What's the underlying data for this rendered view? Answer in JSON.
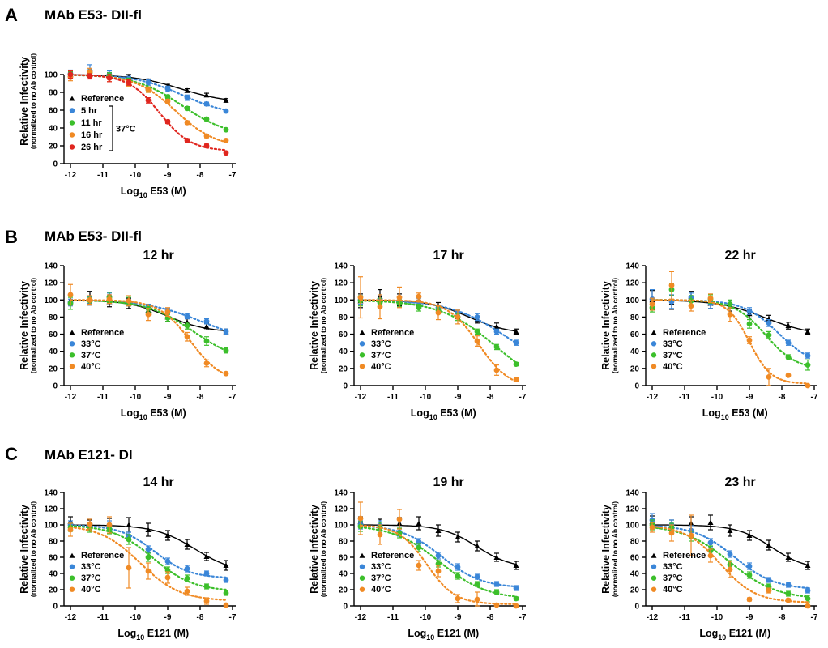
{
  "panels": [
    {
      "letter": "A",
      "title": "MAb E53- DII-fl"
    },
    {
      "letter": "B",
      "title": "MAb E53- DII-fl"
    },
    {
      "letter": "C",
      "title": "MAb E121- DI"
    }
  ],
  "colors": {
    "reference": "#000000",
    "c1": "#3a86d8",
    "c2": "#3cbf2b",
    "c3": "#f08a24",
    "c4": "#e0261f"
  },
  "chart_data": [
    {
      "type": "line",
      "panel": "A",
      "title": "",
      "xlabel_prefix": "Log",
      "xlabel_sub": "10",
      "xlabel_suffix": " E53 (M)",
      "ylabel": "Relative  Infectivity",
      "ylabel_sub": "(normalized to no Ab control)",
      "xlim": [
        -12.2,
        -6.9
      ],
      "ylim": [
        0,
        140
      ],
      "xticks": [
        -12,
        -11,
        -10,
        -9,
        -8,
        -7
      ],
      "yticks": [
        0,
        20,
        40,
        60,
        80,
        100
      ],
      "legend_note": "37°C",
      "x": [
        -12,
        -11.4,
        -10.8,
        -10.2,
        -9.6,
        -9,
        -8.4,
        -7.8,
        -7.2
      ],
      "series": [
        {
          "name": "Reference",
          "color": "#000000",
          "marker": "triangle",
          "line": "solid",
          "values": [
            100,
            101,
            100,
            98,
            93,
            87,
            82,
            77,
            71
          ],
          "err": [
            3,
            3,
            2,
            2,
            2,
            2,
            2,
            2,
            2
          ]
        },
        {
          "name": "5 hr",
          "color": "#3a86d8",
          "marker": "circle",
          "line": "dotted",
          "values": [
            101,
            104,
            100,
            95,
            91,
            84,
            74,
            67,
            59
          ],
          "err": [
            4,
            7,
            4,
            3,
            3,
            3,
            3,
            2,
            2
          ]
        },
        {
          "name": "11 hr",
          "color": "#3cbf2b",
          "marker": "circle",
          "line": "dotted",
          "values": [
            100,
            102,
            99,
            93,
            83,
            75,
            62,
            50,
            38
          ],
          "err": [
            3,
            3,
            3,
            3,
            3,
            2,
            2,
            2,
            2
          ]
        },
        {
          "name": "16 hr",
          "color": "#f08a24",
          "marker": "circle",
          "line": "dotted",
          "values": [
            97,
            103,
            96,
            90,
            83,
            70,
            46,
            31,
            26
          ],
          "err": [
            4,
            4,
            4,
            3,
            3,
            2,
            2,
            2,
            2
          ]
        },
        {
          "name": "26 hr",
          "color": "#e0261f",
          "marker": "circle",
          "line": "dotted",
          "values": [
            100,
            98,
            96,
            91,
            71,
            47,
            26,
            20,
            12
          ],
          "err": [
            4,
            3,
            4,
            3,
            3,
            2,
            2,
            2,
            1
          ]
        }
      ]
    },
    {
      "type": "line",
      "panel": "B",
      "title": "12 hr",
      "xlabel_prefix": "Log",
      "xlabel_sub": "10",
      "xlabel_suffix": " E53 (M)",
      "ylabel": "Relative  Infectivity",
      "ylabel_sub": "(normalized to no Ab control)",
      "xlim": [
        -12.2,
        -6.9
      ],
      "ylim": [
        0,
        140
      ],
      "xticks": [
        -12,
        -11,
        -10,
        -9,
        -8,
        -7
      ],
      "yticks": [
        0,
        20,
        40,
        60,
        80,
        100,
        120,
        140
      ],
      "x": [
        -12,
        -11.4,
        -10.8,
        -10.2,
        -9.6,
        -9,
        -8.4,
        -7.8,
        -7.2
      ],
      "series": [
        {
          "name": "Reference",
          "color": "#000000",
          "marker": "triangle",
          "line": "solid",
          "values": [
            100,
            102,
            98,
            96,
            88,
            80,
            74,
            69,
            63
          ],
          "err": [
            5,
            8,
            6,
            6,
            5,
            5,
            4,
            4,
            3
          ]
        },
        {
          "name": "33°C",
          "color": "#3a86d8",
          "marker": "circle",
          "line": "dotted",
          "values": [
            97,
            100,
            104,
            97,
            92,
            87,
            81,
            75,
            63
          ],
          "err": [
            4,
            4,
            4,
            4,
            3,
            3,
            3,
            3,
            3
          ]
        },
        {
          "name": "37°C",
          "color": "#3cbf2b",
          "marker": "circle",
          "line": "dotted",
          "values": [
            96,
            99,
            103,
            98,
            90,
            79,
            70,
            52,
            41
          ],
          "err": [
            7,
            4,
            6,
            5,
            4,
            4,
            4,
            5,
            3
          ]
        },
        {
          "name": "40°C",
          "color": "#f08a24",
          "marker": "circle",
          "line": "dotted",
          "values": [
            106,
            100,
            101,
            99,
            83,
            86,
            57,
            26,
            14
          ],
          "err": [
            12,
            5,
            5,
            6,
            7,
            5,
            5,
            4,
            2
          ]
        }
      ]
    },
    {
      "type": "line",
      "panel": "B",
      "title": "17 hr",
      "xlabel_prefix": "Log",
      "xlabel_sub": "10",
      "xlabel_suffix": " E53 (M)",
      "ylabel": "Relative  Infectivity",
      "ylabel_sub": "(normalized to no Ab control)",
      "xlim": [
        -12.2,
        -6.9
      ],
      "ylim": [
        0,
        140
      ],
      "xticks": [
        -12,
        -11,
        -10,
        -9,
        -8,
        -7
      ],
      "yticks": [
        0,
        20,
        40,
        60,
        80,
        100,
        120,
        140
      ],
      "x": [
        -12,
        -11.4,
        -10.8,
        -10.2,
        -9.6,
        -9,
        -8.4,
        -7.8,
        -7.2
      ],
      "series": [
        {
          "name": "Reference",
          "color": "#000000",
          "marker": "triangle",
          "line": "solid",
          "values": [
            99,
            104,
            100,
            99,
            92,
            83,
            77,
            69,
            63
          ],
          "err": [
            8,
            8,
            7,
            6,
            5,
            5,
            4,
            4,
            3
          ]
        },
        {
          "name": "33°C",
          "color": "#3a86d8",
          "marker": "circle",
          "line": "dotted",
          "values": [
            100,
            100,
            99,
            98,
            91,
            85,
            80,
            63,
            50
          ],
          "err": [
            5,
            5,
            4,
            4,
            3,
            3,
            4,
            3,
            3
          ]
        },
        {
          "name": "37°C",
          "color": "#3cbf2b",
          "marker": "circle",
          "line": "dotted",
          "values": [
            99,
            97,
            96,
            91,
            88,
            80,
            63,
            45,
            25
          ],
          "err": [
            6,
            5,
            4,
            4,
            4,
            4,
            3,
            3,
            2
          ]
        },
        {
          "name": "40°C",
          "color": "#f08a24",
          "marker": "circle",
          "line": "dotted",
          "values": [
            103,
            92,
            103,
            104,
            85,
            80,
            52,
            18,
            7
          ],
          "err": [
            24,
            14,
            12,
            4,
            8,
            8,
            6,
            6,
            2
          ]
        }
      ]
    },
    {
      "type": "line",
      "panel": "B",
      "title": "22 hr",
      "xlabel_prefix": "Log",
      "xlabel_sub": "10",
      "xlabel_suffix": " E53 (M)",
      "ylabel": "Relative  Infectivity",
      "ylabel_sub": "(normalized to no Ab control)",
      "xlim": [
        -12.2,
        -6.9
      ],
      "ylim": [
        0,
        140
      ],
      "xticks": [
        -12,
        -11,
        -10,
        -9,
        -8,
        -7
      ],
      "yticks": [
        0,
        20,
        40,
        60,
        80,
        100,
        120,
        140
      ],
      "x": [
        -12,
        -11.4,
        -10.8,
        -10.2,
        -9.6,
        -9,
        -8.4,
        -7.8,
        -7.2
      ],
      "series": [
        {
          "name": "Reference",
          "color": "#000000",
          "marker": "triangle",
          "line": "solid",
          "values": [
            100,
            97,
            104,
            96,
            93,
            84,
            78,
            70,
            63
          ],
          "err": [
            11,
            8,
            6,
            6,
            6,
            5,
            4,
            4,
            3
          ]
        },
        {
          "name": "33°C",
          "color": "#3a86d8",
          "marker": "circle",
          "line": "dotted",
          "values": [
            101,
            98,
            103,
            96,
            95,
            87,
            73,
            50,
            35
          ],
          "err": [
            11,
            8,
            5,
            6,
            4,
            4,
            4,
            3,
            3
          ]
        },
        {
          "name": "37°C",
          "color": "#3cbf2b",
          "marker": "circle",
          "line": "dotted",
          "values": [
            91,
            112,
            99,
            101,
            95,
            72,
            59,
            33,
            24
          ],
          "err": [
            5,
            7,
            6,
            5,
            5,
            5,
            4,
            3,
            6
          ]
        },
        {
          "name": "40°C",
          "color": "#f08a24",
          "marker": "circle",
          "line": "dotted",
          "values": [
            95,
            117,
            93,
            102,
            83,
            53,
            10,
            12,
            0
          ],
          "err": [
            7,
            16,
            6,
            5,
            8,
            4,
            10,
            1,
            0
          ]
        }
      ]
    },
    {
      "type": "line",
      "panel": "C",
      "title": "14 hr",
      "xlabel_prefix": "Log",
      "xlabel_sub": "10",
      "xlabel_suffix": " E121 (M)",
      "ylabel": "Relative  Infectivity",
      "ylabel_sub": "(normalized to no Ab control)",
      "xlim": [
        -12.2,
        -6.9
      ],
      "ylim": [
        0,
        140
      ],
      "xticks": [
        -12,
        -11,
        -10,
        -9,
        -8,
        -7
      ],
      "yticks": [
        0,
        20,
        40,
        60,
        80,
        100,
        120,
        140
      ],
      "x": [
        -12,
        -11.4,
        -10.8,
        -10.2,
        -9.6,
        -9,
        -8.4,
        -7.8,
        -7.2
      ],
      "series": [
        {
          "name": "Reference",
          "color": "#000000",
          "marker": "triangle",
          "line": "solid",
          "values": [
            104,
            100,
            100,
            100,
            94,
            87,
            76,
            61,
            50
          ],
          "err": [
            6,
            6,
            8,
            9,
            8,
            6,
            6,
            5,
            6
          ]
        },
        {
          "name": "33°C",
          "color": "#3a86d8",
          "marker": "circle",
          "line": "dotted",
          "values": [
            100,
            101,
            100,
            86,
            70,
            55,
            46,
            40,
            32
          ],
          "err": [
            5,
            6,
            5,
            5,
            4,
            4,
            4,
            3,
            3
          ]
        },
        {
          "name": "37°C",
          "color": "#3cbf2b",
          "marker": "circle",
          "line": "dotted",
          "values": [
            97,
            96,
            95,
            82,
            60,
            44,
            34,
            24,
            16
          ],
          "err": [
            5,
            5,
            6,
            6,
            5,
            4,
            4,
            3,
            3
          ]
        },
        {
          "name": "40°C",
          "color": "#f08a24",
          "marker": "circle",
          "line": "dotted",
          "values": [
            94,
            101,
            100,
            47,
            43,
            35,
            18,
            6,
            1
          ],
          "err": [
            8,
            6,
            10,
            25,
            10,
            7,
            5,
            4,
            1
          ]
        }
      ]
    },
    {
      "type": "line",
      "panel": "C",
      "title": "19 hr",
      "xlabel_prefix": "Log",
      "xlabel_sub": "10",
      "xlabel_suffix": " E121 (M)",
      "ylabel": "Relative  Infectivity",
      "ylabel_sub": "(normalized to no Ab control)",
      "xlim": [
        -12.2,
        -6.9
      ],
      "ylim": [
        0,
        140
      ],
      "xticks": [
        -12,
        -11,
        -10,
        -9,
        -8,
        -7
      ],
      "yticks": [
        0,
        20,
        40,
        60,
        80,
        100,
        120,
        140
      ],
      "x": [
        -12,
        -11.4,
        -10.8,
        -10.2,
        -9.6,
        -9,
        -8.4,
        -7.8,
        -7.2
      ],
      "series": [
        {
          "name": "Reference",
          "color": "#000000",
          "marker": "triangle",
          "line": "solid",
          "values": [
            104,
            100,
            102,
            102,
            93,
            85,
            74,
            60,
            50
          ],
          "err": [
            6,
            7,
            7,
            8,
            7,
            6,
            6,
            5,
            5
          ]
        },
        {
          "name": "33°C",
          "color": "#3a86d8",
          "marker": "circle",
          "line": "dotted",
          "values": [
            100,
            99,
            91,
            79,
            62,
            48,
            36,
            27,
            22
          ],
          "err": [
            5,
            6,
            5,
            4,
            4,
            4,
            3,
            3,
            3
          ]
        },
        {
          "name": "37°C",
          "color": "#3cbf2b",
          "marker": "circle",
          "line": "dotted",
          "values": [
            98,
            97,
            90,
            72,
            52,
            37,
            27,
            17,
            9
          ],
          "err": [
            6,
            6,
            6,
            5,
            4,
            4,
            3,
            3,
            2
          ]
        },
        {
          "name": "40°C",
          "color": "#f08a24",
          "marker": "circle",
          "line": "dotted",
          "values": [
            108,
            88,
            107,
            50,
            43,
            9,
            8,
            1,
            0
          ],
          "err": [
            20,
            12,
            12,
            6,
            7,
            5,
            9,
            1,
            0
          ]
        }
      ]
    },
    {
      "type": "line",
      "panel": "C",
      "title": "23 hr",
      "xlabel_prefix": "Log",
      "xlabel_sub": "10",
      "xlabel_suffix": " E121 (M)",
      "ylabel": "Relative  Infectivity",
      "ylabel_sub": "(normalized to no Ab control)",
      "xlim": [
        -12.2,
        -6.9
      ],
      "ylim": [
        0,
        140
      ],
      "xticks": [
        -12,
        -11,
        -10,
        -9,
        -8,
        -7
      ],
      "yticks": [
        0,
        20,
        40,
        60,
        80,
        100,
        120,
        140
      ],
      "x": [
        -12,
        -11.4,
        -10.8,
        -10.2,
        -9.6,
        -9,
        -8.4,
        -7.8,
        -7.2
      ],
      "series": [
        {
          "name": "Reference",
          "color": "#000000",
          "marker": "triangle",
          "line": "solid",
          "values": [
            104,
            100,
            102,
            103,
            93,
            87,
            75,
            60,
            50
          ],
          "err": [
            7,
            6,
            8,
            9,
            7,
            6,
            6,
            5,
            5
          ]
        },
        {
          "name": "33°C",
          "color": "#3a86d8",
          "marker": "circle",
          "line": "dotted",
          "values": [
            106,
            100,
            93,
            78,
            64,
            49,
            32,
            26,
            19
          ],
          "err": [
            8,
            6,
            6,
            5,
            4,
            4,
            3,
            3,
            3
          ]
        },
        {
          "name": "37°C",
          "color": "#3cbf2b",
          "marker": "circle",
          "line": "dotted",
          "values": [
            100,
            97,
            86,
            68,
            51,
            38,
            24,
            15,
            9
          ],
          "err": [
            6,
            5,
            6,
            6,
            5,
            4,
            3,
            3,
            4
          ]
        },
        {
          "name": "40°C",
          "color": "#f08a24",
          "marker": "circle",
          "line": "dotted",
          "values": [
            97,
            90,
            87,
            62,
            45,
            8,
            19,
            7,
            0
          ],
          "err": [
            6,
            10,
            25,
            8,
            10,
            2,
            3,
            2,
            0
          ]
        }
      ]
    }
  ]
}
